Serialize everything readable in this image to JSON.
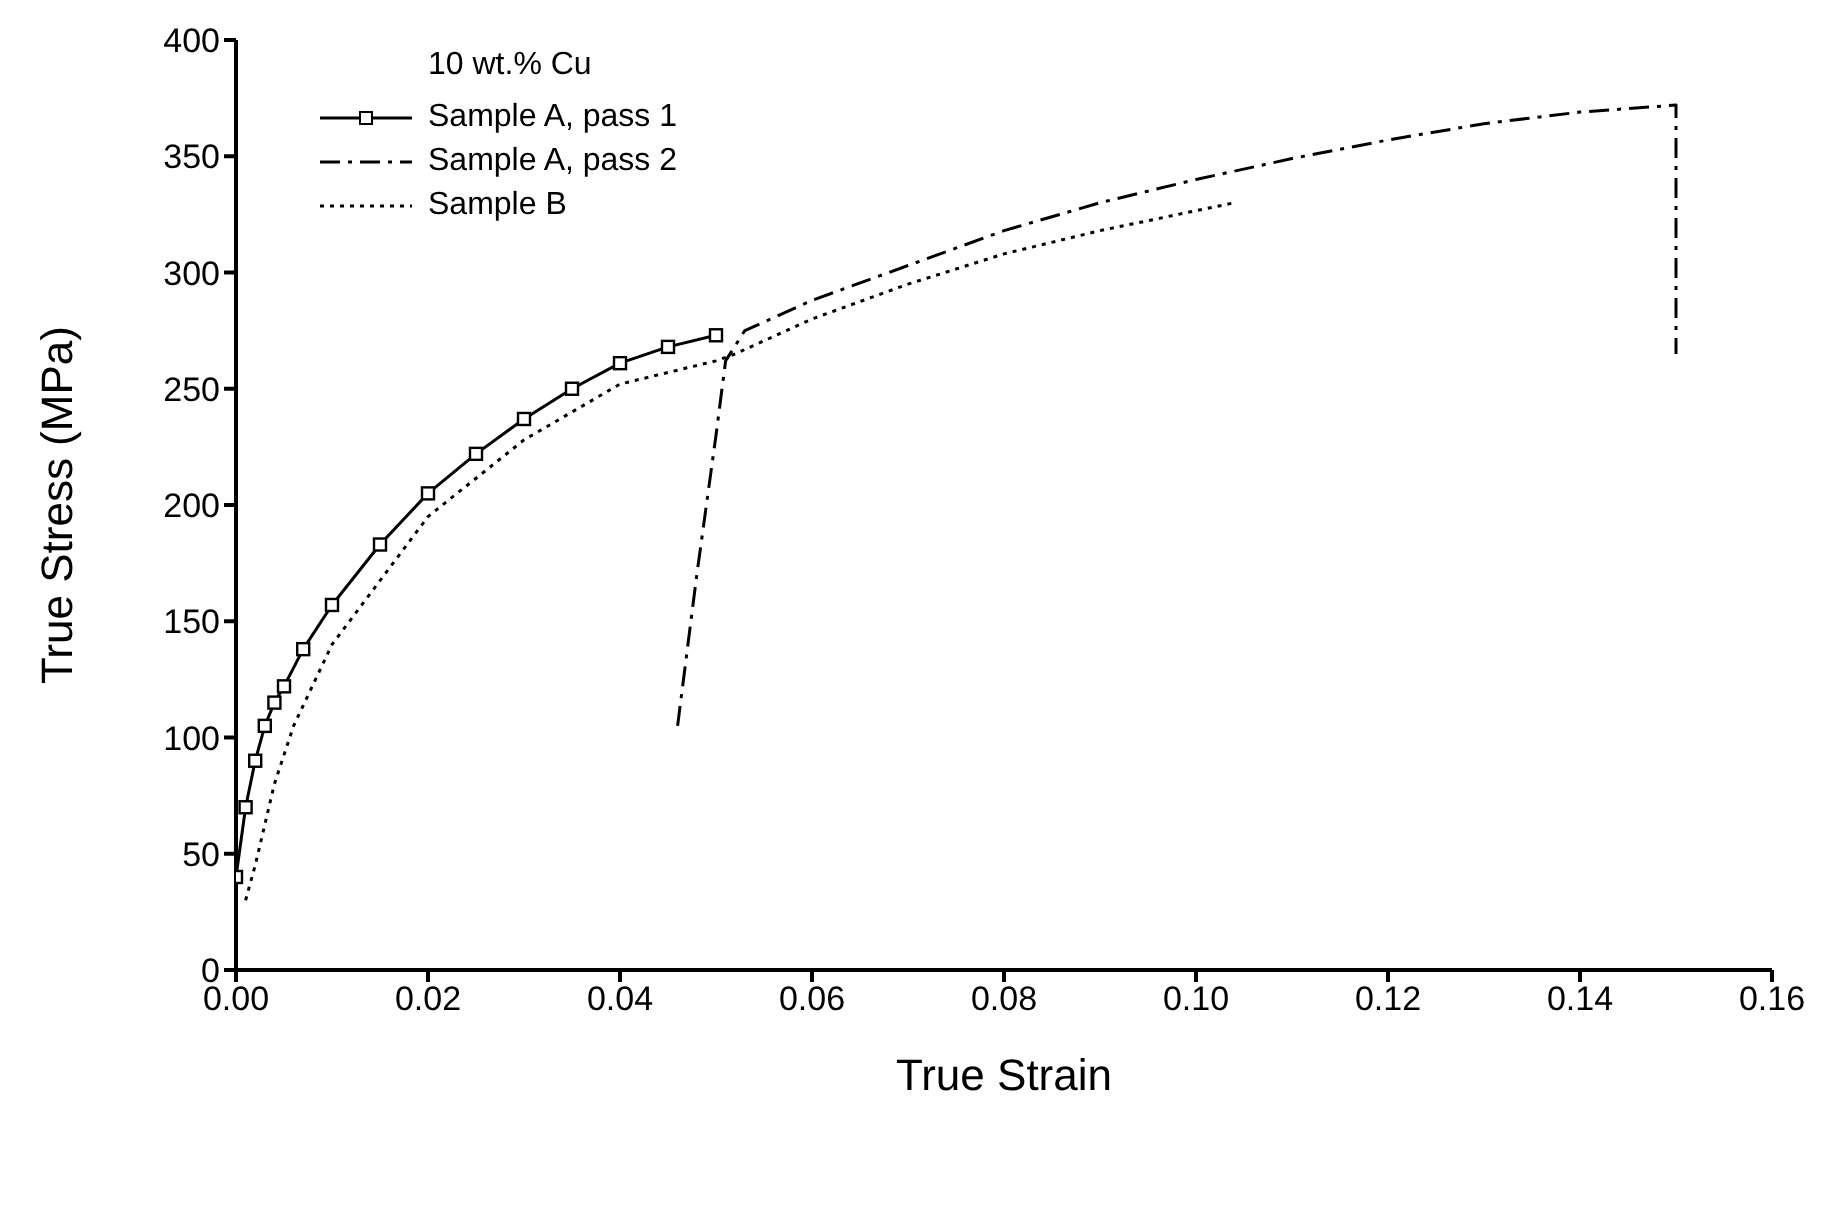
{
  "chart_data": {
    "type": "line",
    "xlabel": "True Strain",
    "ylabel": "True Stress (MPa)",
    "legend_title": "10 wt.% Cu",
    "legend": "top left",
    "xlim": [
      0,
      0.16
    ],
    "ylim": [
      0,
      400
    ],
    "xticks": [
      {
        "value": 0,
        "label": "0.00"
      },
      {
        "value": 0.02,
        "label": "0.02"
      },
      {
        "value": 0.04,
        "label": "0.04"
      },
      {
        "value": 0.06,
        "label": "0.06"
      },
      {
        "value": 0.08,
        "label": "0.08"
      },
      {
        "value": 0.1,
        "label": "0.10"
      },
      {
        "value": 0.12,
        "label": "0.12"
      },
      {
        "value": 0.14,
        "label": "0.14"
      },
      {
        "value": 0.16,
        "label": "0.16"
      }
    ],
    "yticks": [
      0,
      50,
      100,
      150,
      200,
      250,
      300,
      350,
      400
    ],
    "series": [
      {
        "name": "Sample A, pass 1",
        "color": "#000000",
        "line_style": "solid",
        "marker": "square",
        "x": [
          0,
          0.001,
          0.002,
          0.003,
          0.004,
          0.005,
          0.007,
          0.01,
          0.015,
          0.02,
          0.025,
          0.03,
          0.035,
          0.04,
          0.045,
          0.05
        ],
        "values": [
          40,
          70,
          90,
          105,
          115,
          122,
          138,
          157,
          183,
          205,
          222,
          237,
          250,
          261,
          268,
          273
        ]
      },
      {
        "name": "Sample A, pass 2",
        "color": "#000000",
        "line_style": "dashed",
        "marker": "none",
        "x": [
          0.046,
          0.048,
          0.05,
          0.051,
          0.053,
          0.06,
          0.07,
          0.08,
          0.09,
          0.1,
          0.11,
          0.12,
          0.13,
          0.14,
          0.15,
          0.15
        ],
        "values": [
          105,
          170,
          230,
          262,
          275,
          288,
          303,
          318,
          330,
          340,
          349,
          357,
          364,
          369,
          372,
          265
        ]
      },
      {
        "name": "Sample B",
        "color": "#000000",
        "line_style": "dotted",
        "marker": "none",
        "x": [
          0.001,
          0.002,
          0.004,
          0.006,
          0.01,
          0.02,
          0.03,
          0.04,
          0.05,
          0.052,
          0.06,
          0.07,
          0.08,
          0.09,
          0.104
        ],
        "values": [
          30,
          45,
          80,
          105,
          140,
          195,
          228,
          252,
          262,
          265,
          280,
          295,
          308,
          318,
          330
        ]
      }
    ]
  }
}
